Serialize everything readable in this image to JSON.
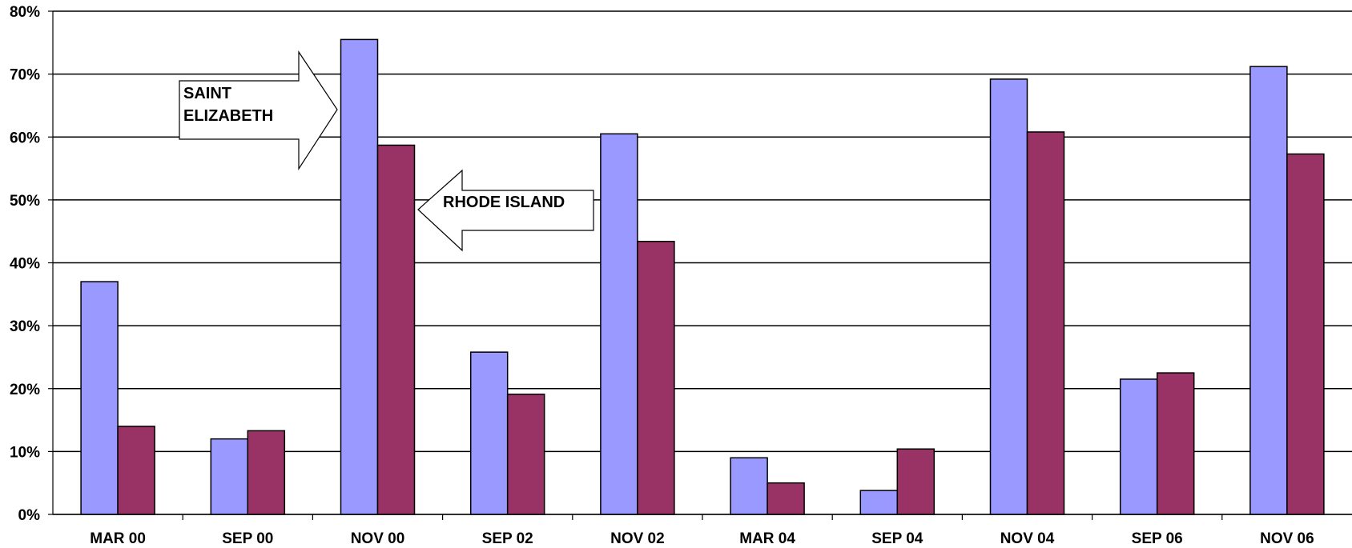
{
  "chart_data": {
    "type": "bar",
    "title": "",
    "xlabel": "",
    "ylabel": "",
    "ylim": [
      0,
      80
    ],
    "y_tick_step": 10,
    "y_tick_format": "percent",
    "grid": true,
    "categories": [
      "MAR 00",
      "SEP 00",
      "NOV 00",
      "SEP 02",
      "NOV 02",
      "MAR 04",
      "SEP 04",
      "NOV 04",
      "SEP 06",
      "NOV 06"
    ],
    "series": [
      {
        "values": [
          37,
          12,
          75.5,
          25.8,
          60.5,
          9,
          3.8,
          69.2,
          21.5,
          71.2
        ],
        "color": "#9999ff"
      },
      {
        "values": [
          14,
          13.3,
          58.7,
          19.1,
          43.4,
          5,
          10.4,
          60.8,
          22.5,
          57.3
        ],
        "color": "#993366"
      }
    ],
    "annotations": [
      {
        "series_index": 0,
        "direction": "right",
        "lines": [
          "SAINT",
          "ELIZABETH"
        ]
      },
      {
        "series_index": 1,
        "direction": "left",
        "lines": [
          "RHODE ISLAND"
        ]
      }
    ]
  }
}
